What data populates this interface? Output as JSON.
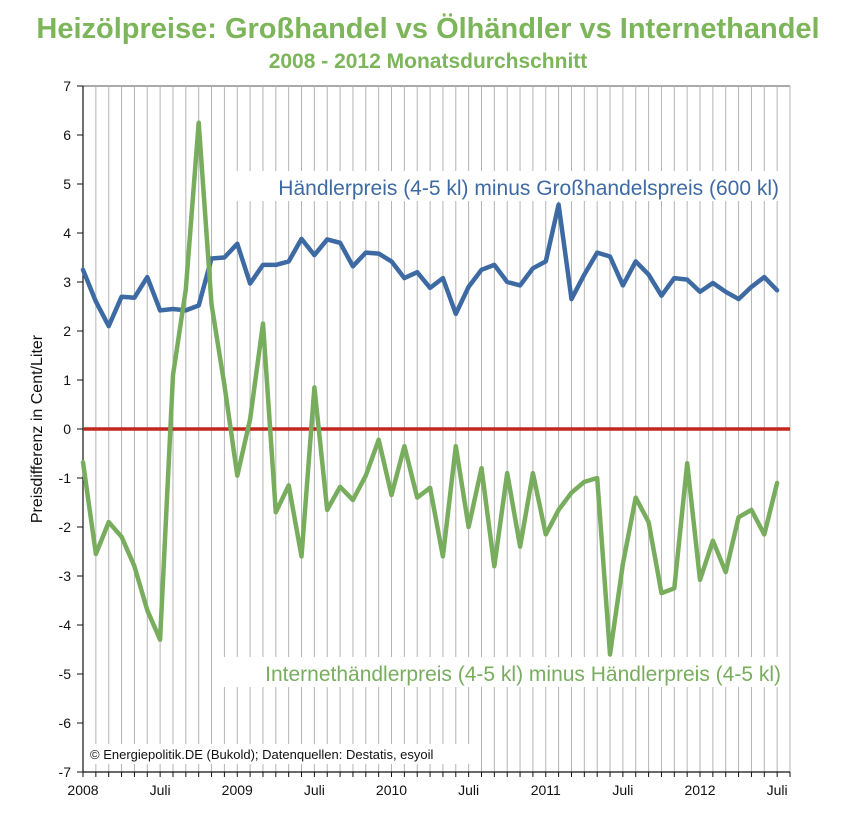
{
  "chart_data": {
    "type": "line",
    "title": "Heizölpreise: Großhandel vs Ölhändler vs Internethandel",
    "subtitle": "2008 - 2012 Monatsdurchschnitt",
    "ylabel": "Preisdifferenz in Cent/Liter",
    "xlabel": "",
    "ylim": [
      -7,
      7
    ],
    "yticks": [
      7,
      6,
      5,
      4,
      3,
      2,
      1,
      0,
      -1,
      -2,
      -3,
      -4,
      -5,
      -6,
      -7
    ],
    "grid": "vertical",
    "x_tick_labels": [
      {
        "label": "2008",
        "index": 0
      },
      {
        "label": "Juli",
        "index": 6
      },
      {
        "label": "2009",
        "index": 12
      },
      {
        "label": "Juli",
        "index": 18
      },
      {
        "label": "2010",
        "index": 24
      },
      {
        "label": "Juli",
        "index": 30
      },
      {
        "label": "2011",
        "index": 36
      },
      {
        "label": "Juli",
        "index": 42
      },
      {
        "label": "2012",
        "index": 48
      },
      {
        "label": "Juli",
        "index": 54
      }
    ],
    "reference_line": {
      "y": 0,
      "color": "#c0281e"
    },
    "series": [
      {
        "name": "Händlerpreis (4-5 kl) minus Großhandelspreis (600 kl)",
        "color": "#3e6aa3",
        "values": [
          3.25,
          2.6,
          2.1,
          2.7,
          2.68,
          3.1,
          2.42,
          2.45,
          2.42,
          2.52,
          3.48,
          3.5,
          3.78,
          2.97,
          3.35,
          3.35,
          3.42,
          3.88,
          3.55,
          3.87,
          3.8,
          3.32,
          3.6,
          3.58,
          3.42,
          3.08,
          3.2,
          2.88,
          3.08,
          2.35,
          2.9,
          3.25,
          3.35,
          3.0,
          2.93,
          3.28,
          3.42,
          4.58,
          2.65,
          3.15,
          3.6,
          3.52,
          2.93,
          3.42,
          3.15,
          2.72,
          3.08,
          3.05,
          2.8,
          2.98,
          2.8,
          2.65,
          2.9,
          3.1,
          2.83
        ]
      },
      {
        "name": "Internethändlerpreis (4-5 kl) minus Händlerpreis (4-5 kl)",
        "color": "#79ad5e",
        "values": [
          -0.68,
          -2.55,
          -1.9,
          -2.2,
          -2.8,
          -3.7,
          -4.3,
          1.1,
          2.85,
          6.25,
          2.55,
          0.9,
          -0.95,
          0.2,
          2.15,
          -1.7,
          -1.15,
          -2.6,
          0.85,
          -1.65,
          -1.18,
          -1.45,
          -0.95,
          -0.22,
          -1.35,
          -0.35,
          -1.4,
          -1.2,
          -2.6,
          -0.35,
          -2.0,
          -0.8,
          -2.8,
          -0.9,
          -2.4,
          -0.9,
          -2.15,
          -1.65,
          -1.3,
          -1.08,
          -1.0,
          -4.6,
          -2.75,
          -1.4,
          -1.9,
          -3.35,
          -3.25,
          -0.7,
          -3.08,
          -2.28,
          -2.92,
          -1.8,
          -1.65,
          -2.15,
          -1.1
        ]
      }
    ]
  },
  "credit": "© Energiepolitik.DE (Bukold); Datenquellen: Destatis, esyoil"
}
